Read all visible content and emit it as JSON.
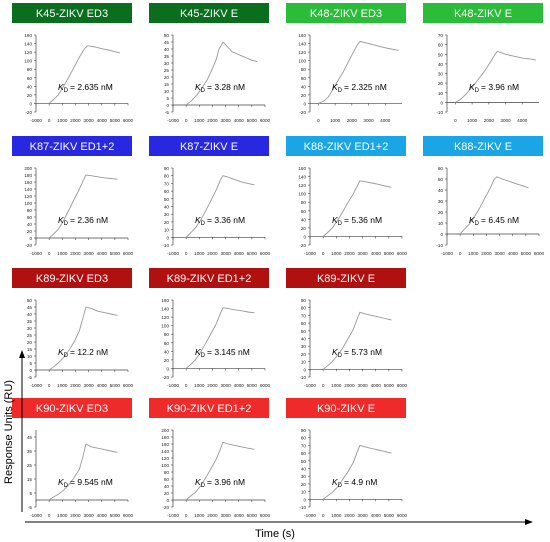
{
  "figure": {
    "ylabel": "Response Units (RU)",
    "xlabel": "Time (s)"
  },
  "chart_data": [
    {
      "type": "line",
      "title": "K45-ZIKV ED3",
      "color": "#0a6e1e",
      "kd_value": "= 2.635 nM",
      "xlim": [
        -1000,
        6000
      ],
      "xticks": [
        -1000,
        0,
        1000,
        2000,
        3000,
        4000,
        5000,
        6000
      ],
      "ylim": [
        -20,
        160
      ],
      "yticks": [
        -20,
        0,
        20,
        40,
        60,
        80,
        100,
        120,
        140,
        160
      ],
      "x": [
        0,
        300,
        700,
        1100,
        1500,
        1900,
        2300,
        2700,
        2900,
        3500,
        4000,
        4500,
        5000,
        5400
      ],
      "y": [
        0,
        8,
        20,
        40,
        62,
        85,
        108,
        128,
        135,
        132,
        128,
        125,
        121,
        118
      ]
    },
    {
      "type": "line",
      "title": "K45-ZIKV E",
      "color": "#0a6e1e",
      "kd_value": "= 3.28 nM",
      "xlim": [
        -1000,
        6000
      ],
      "xticks": [
        -1000,
        0,
        1000,
        2000,
        3000,
        4000,
        5000,
        6000
      ],
      "ylim": [
        -5,
        50
      ],
      "yticks": [
        -5,
        0,
        5,
        10,
        15,
        20,
        25,
        30,
        35,
        40,
        45,
        50
      ],
      "x": [
        0,
        400,
        800,
        1200,
        1600,
        2000,
        2300,
        2500,
        2700,
        2800,
        2900,
        3100,
        3500,
        4000,
        4500,
        5000,
        5400
      ],
      "y": [
        0,
        3,
        7,
        12,
        18,
        26,
        33,
        40,
        43,
        45,
        44,
        42,
        38,
        36,
        34,
        32,
        31
      ]
    },
    {
      "type": "line",
      "title": "K48-ZIKV ED3",
      "color": "#2bbd3a",
      "kd_value": "= 2.325 nM",
      "xlim": [
        -500,
        5000
      ],
      "xticks": [
        0,
        1000,
        2000,
        3000,
        4000
      ],
      "ylim": [
        -20,
        160
      ],
      "yticks": [
        -20,
        0,
        20,
        40,
        60,
        80,
        100,
        120,
        140,
        160
      ],
      "x": [
        0,
        300,
        600,
        900,
        1200,
        1500,
        1800,
        2100,
        2300,
        2500,
        3000,
        3500,
        4000,
        4500,
        4800
      ],
      "y": [
        0,
        5,
        15,
        35,
        55,
        75,
        98,
        120,
        135,
        145,
        140,
        135,
        130,
        126,
        124
      ]
    },
    {
      "type": "line",
      "title": "K48-ZIKV E",
      "color": "#2bbd3a",
      "kd_value": "= 3.96 nM",
      "xlim": [
        -500,
        5000
      ],
      "xticks": [
        0,
        1000,
        2000,
        3000,
        4000
      ],
      "ylim": [
        -10,
        70
      ],
      "yticks": [
        -10,
        0,
        10,
        20,
        30,
        40,
        50,
        60,
        70
      ],
      "x": [
        0,
        300,
        600,
        900,
        1200,
        1500,
        1800,
        2100,
        2300,
        2500,
        2700,
        3000,
        3500,
        4000,
        4500,
        4800
      ],
      "y": [
        0,
        3,
        8,
        14,
        20,
        27,
        34,
        42,
        48,
        53,
        52,
        50,
        48,
        46,
        45,
        44
      ]
    },
    {
      "type": "line",
      "title": "K87-ZIKV ED1+2",
      "color": "#2828e0",
      "kd_value": "= 2.36 nM",
      "xlim": [
        -1000,
        6000
      ],
      "xticks": [
        -1000,
        0,
        1000,
        2000,
        3000,
        4000,
        5000,
        6000
      ],
      "ylim": [
        -20,
        200
      ],
      "yticks": [
        -20,
        0,
        20,
        40,
        60,
        80,
        100,
        120,
        140,
        160,
        180,
        200
      ],
      "x": [
        0,
        300,
        700,
        1100,
        1500,
        1900,
        2300,
        2600,
        2800,
        3200,
        3700,
        4200,
        4700,
        5200
      ],
      "y": [
        0,
        10,
        25,
        50,
        80,
        110,
        140,
        165,
        180,
        178,
        175,
        172,
        170,
        168
      ]
    },
    {
      "type": "line",
      "title": "K87-ZIKV E",
      "color": "#2828e0",
      "kd_value": "= 3.36 nM",
      "xlim": [
        -1000,
        6000
      ],
      "xticks": [
        -1000,
        0,
        1000,
        2000,
        3000,
        4000,
        5000,
        6000
      ],
      "ylim": [
        -10,
        90
      ],
      "yticks": [
        -10,
        0,
        10,
        20,
        30,
        40,
        50,
        60,
        70,
        80,
        90
      ],
      "x": [
        0,
        300,
        700,
        1100,
        1500,
        1900,
        2300,
        2600,
        2800,
        3200,
        3700,
        4200,
        4700,
        5200
      ],
      "y": [
        0,
        5,
        12,
        22,
        35,
        48,
        62,
        74,
        80,
        78,
        75,
        72,
        70,
        68
      ]
    },
    {
      "type": "line",
      "title": "K88-ZIKV ED1+2",
      "color": "#1aa5e6",
      "kd_value": "= 5.36 nM",
      "xlim": [
        -1000,
        6000
      ],
      "xticks": [
        -1000,
        0,
        1000,
        2000,
        3000,
        4000,
        5000,
        6000
      ],
      "ylim": [
        -20,
        160
      ],
      "yticks": [
        -20,
        0,
        20,
        40,
        60,
        80,
        100,
        120,
        140,
        160
      ],
      "x": [
        0,
        300,
        700,
        1100,
        1500,
        1900,
        2300,
        2600,
        2800,
        3200,
        3700,
        4200,
        4700,
        5200
      ],
      "y": [
        0,
        8,
        20,
        38,
        58,
        80,
        100,
        118,
        130,
        128,
        125,
        122,
        118,
        115
      ]
    },
    {
      "type": "line",
      "title": "K88-ZIKV E",
      "color": "#1aa5e6",
      "kd_value": "= 6.45 nM",
      "xlim": [
        -1000,
        6000
      ],
      "xticks": [
        -1000,
        0,
        1000,
        2000,
        3000,
        4000,
        5000,
        6000
      ],
      "ylim": [
        -10,
        60
      ],
      "yticks": [
        -10,
        0,
        10,
        20,
        30,
        40,
        50,
        60
      ],
      "x": [
        0,
        300,
        700,
        1100,
        1500,
        1900,
        2300,
        2600,
        2800,
        3200,
        3700,
        4200,
        4700,
        5200
      ],
      "y": [
        0,
        4,
        9,
        16,
        24,
        33,
        42,
        50,
        52,
        50,
        48,
        46,
        44,
        42
      ]
    },
    {
      "type": "line",
      "title": "K89-ZIKV ED3",
      "color": "#b01010",
      "kd_value": "= 12.2 nM",
      "xlim": [
        -1000,
        6000
      ],
      "xticks": [
        -1000,
        0,
        1000,
        2000,
        3000,
        4000,
        5000,
        6000
      ],
      "ylim": [
        -5,
        50
      ],
      "yticks": [
        -5,
        0,
        5,
        10,
        15,
        20,
        25,
        30,
        35,
        40,
        45,
        50
      ],
      "x": [
        0,
        300,
        700,
        1100,
        1500,
        1900,
        2300,
        2600,
        2800,
        3200,
        3700,
        4200,
        4700,
        5200
      ],
      "y": [
        0,
        2,
        5,
        9,
        14,
        20,
        28,
        38,
        45,
        44,
        42,
        41,
        40,
        39
      ]
    },
    {
      "type": "line",
      "title": "K89-ZIKV ED1+2",
      "color": "#b01010",
      "kd_value": "= 3.145 nM",
      "xlim": [
        -1000,
        6000
      ],
      "xticks": [
        -1000,
        0,
        1000,
        2000,
        3000,
        4000,
        5000,
        6000
      ],
      "ylim": [
        -20,
        160
      ],
      "yticks": [
        -20,
        0,
        20,
        40,
        60,
        80,
        100,
        120,
        140,
        160
      ],
      "x": [
        0,
        300,
        700,
        1100,
        1500,
        1900,
        2300,
        2600,
        2800,
        3200,
        3700,
        4200,
        4700,
        5200
      ],
      "y": [
        0,
        8,
        20,
        38,
        60,
        82,
        105,
        128,
        142,
        140,
        137,
        135,
        132,
        130
      ]
    },
    {
      "type": "line",
      "title": "K89-ZIKV E",
      "color": "#b01010",
      "kd_value": "= 5.73 nM",
      "xlim": [
        -1000,
        6000
      ],
      "xticks": [
        -1000,
        0,
        1000,
        2000,
        3000,
        4000,
        5000,
        6000
      ],
      "ylim": [
        -10,
        90
      ],
      "yticks": [
        -10,
        0,
        10,
        20,
        30,
        40,
        50,
        60,
        70,
        80,
        90
      ],
      "x": [
        0,
        300,
        700,
        1100,
        1500,
        1900,
        2300,
        2600,
        2800,
        3200,
        3700,
        4200,
        4700,
        5200
      ],
      "y": [
        0,
        4,
        10,
        18,
        28,
        40,
        52,
        66,
        74,
        72,
        70,
        68,
        66,
        64
      ]
    },
    {
      "type": "line",
      "title": "K90-ZIKV ED3",
      "color": "#ee2a2a",
      "kd_value": "= 9.545 nM",
      "xlim": [
        -1000,
        6000
      ],
      "xticks": [
        -1000,
        0,
        1000,
        2000,
        3000,
        4000,
        5000,
        6000
      ],
      "ylim": [
        -5,
        50
      ],
      "yticks": [
        -5,
        5,
        15,
        25,
        35,
        45
      ],
      "x": [
        0,
        300,
        700,
        1100,
        1500,
        1900,
        2300,
        2600,
        2800,
        3200,
        3700,
        4200,
        4700,
        5200
      ],
      "y": [
        0,
        2,
        4,
        7,
        11,
        16,
        22,
        32,
        40,
        38,
        37,
        36,
        35,
        34
      ]
    },
    {
      "type": "line",
      "title": "K90-ZIKV ED1+2",
      "color": "#ee2a2a",
      "kd_value": "= 3.96 nM",
      "xlim": [
        -1000,
        6000
      ],
      "xticks": [
        -1000,
        0,
        1000,
        2000,
        3000,
        4000,
        5000,
        6000
      ],
      "ylim": [
        -20,
        200
      ],
      "yticks": [
        -20,
        0,
        20,
        40,
        60,
        80,
        100,
        120,
        140,
        160,
        180,
        200
      ],
      "x": [
        0,
        300,
        700,
        1100,
        1500,
        1900,
        2300,
        2600,
        2800,
        3200,
        3700,
        4200,
        4700,
        5200
      ],
      "y": [
        0,
        10,
        22,
        40,
        65,
        90,
        118,
        145,
        165,
        160,
        156,
        152,
        148,
        145
      ]
    },
    {
      "type": "line",
      "title": "K90-ZIKV E",
      "color": "#ee2a2a",
      "kd_value": "= 4.9 nM",
      "xlim": [
        -1000,
        6000
      ],
      "xticks": [
        -1000,
        0,
        1000,
        2000,
        3000,
        4000,
        5000,
        6000
      ],
      "ylim": [
        -10,
        90
      ],
      "yticks": [
        -10,
        0,
        10,
        20,
        30,
        40,
        50,
        60,
        70,
        80,
        90
      ],
      "x": [
        0,
        300,
        700,
        1100,
        1500,
        1900,
        2300,
        2600,
        2800,
        3200,
        3700,
        4200,
        4700,
        5200
      ],
      "y": [
        0,
        4,
        9,
        16,
        26,
        36,
        48,
        62,
        70,
        68,
        66,
        64,
        62,
        60
      ]
    }
  ]
}
